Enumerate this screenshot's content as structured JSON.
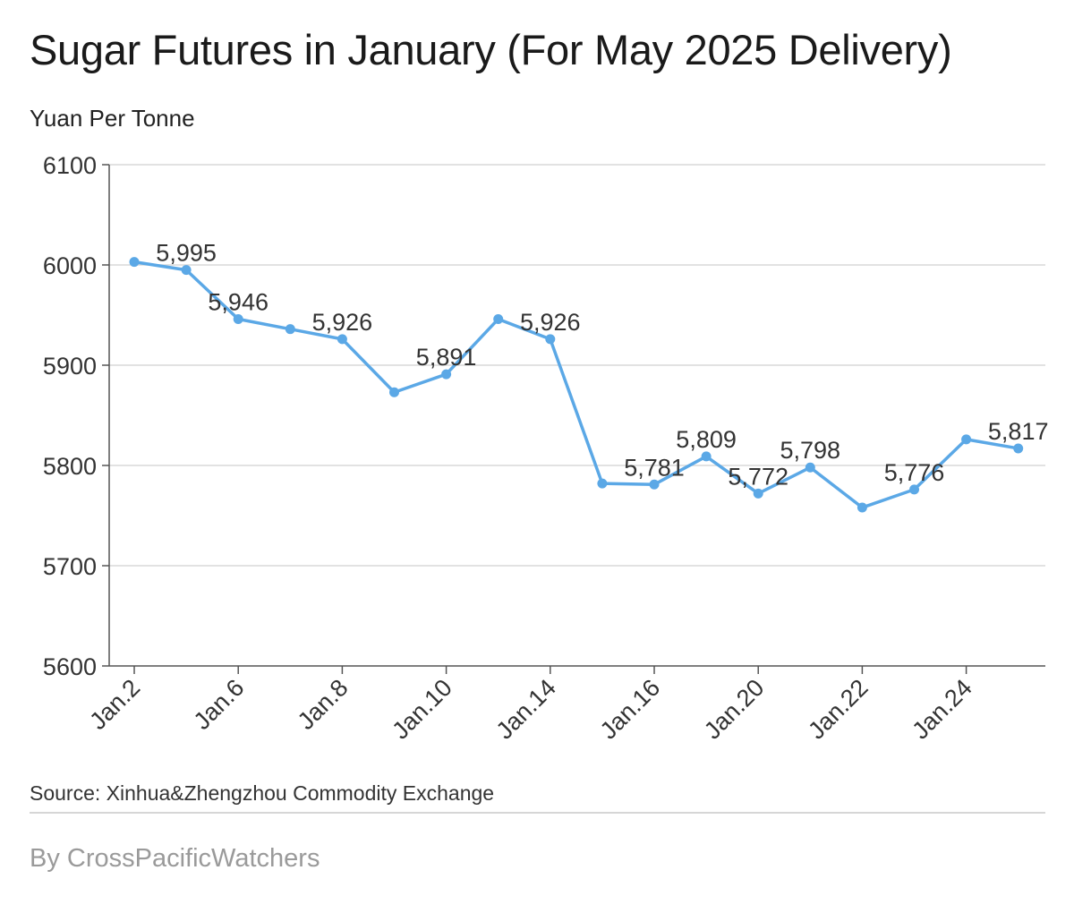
{
  "title": "Sugar Futures in January (For May 2025 Delivery)",
  "unit_label": "Yuan Per Tonne",
  "source": "Source: Xinhua&Zhengzhou Commodity Exchange",
  "byline": "By CrossPacificWatchers",
  "colors": {
    "line": "#5BA8E6",
    "grid": "#d9d9d9",
    "axis": "#555555"
  },
  "chart_data": {
    "type": "line",
    "title": "Sugar Futures in January (For May 2025 Delivery)",
    "ylabel": "Yuan Per Tonne",
    "xlabel": "",
    "ylim": [
      5600,
      6100
    ],
    "yticks": [
      5600,
      5700,
      5800,
      5900,
      6000,
      6100
    ],
    "grid": true,
    "x": [
      "Jan.2",
      "Jan.3",
      "Jan.6",
      "Jan.7",
      "Jan.8",
      "Jan.9",
      "Jan.10",
      "Jan.13",
      "Jan.14",
      "Jan.15",
      "Jan.16",
      "Jan.17",
      "Jan.20",
      "Jan.21",
      "Jan.22",
      "Jan.23",
      "Jan.24",
      "Jan.27"
    ],
    "xticks_shown": [
      "Jan.2",
      "Jan.6",
      "Jan.8",
      "Jan.10",
      "Jan.14",
      "Jan.16",
      "Jan.20",
      "Jan.22",
      "Jan.24"
    ],
    "series": [
      {
        "values": [
          6003,
          5995,
          5946,
          5936,
          5926,
          5873,
          5891,
          5946,
          5926,
          5782,
          5781,
          5809,
          5772,
          5798,
          5758,
          5776,
          5826,
          5817
        ]
      }
    ],
    "data_labels": [
      {
        "x": "Jan.3",
        "text": "5,995"
      },
      {
        "x": "Jan.6",
        "text": "5,946"
      },
      {
        "x": "Jan.8",
        "text": "5,926"
      },
      {
        "x": "Jan.10",
        "text": "5,891"
      },
      {
        "x": "Jan.14",
        "text": "5,926"
      },
      {
        "x": "Jan.16",
        "text": "5,781"
      },
      {
        "x": "Jan.17",
        "text": "5,809"
      },
      {
        "x": "Jan.20",
        "text": "5,772"
      },
      {
        "x": "Jan.21",
        "text": "5,798"
      },
      {
        "x": "Jan.23",
        "text": "5,776"
      },
      {
        "x": "Jan.27",
        "text": "5,817"
      }
    ]
  }
}
